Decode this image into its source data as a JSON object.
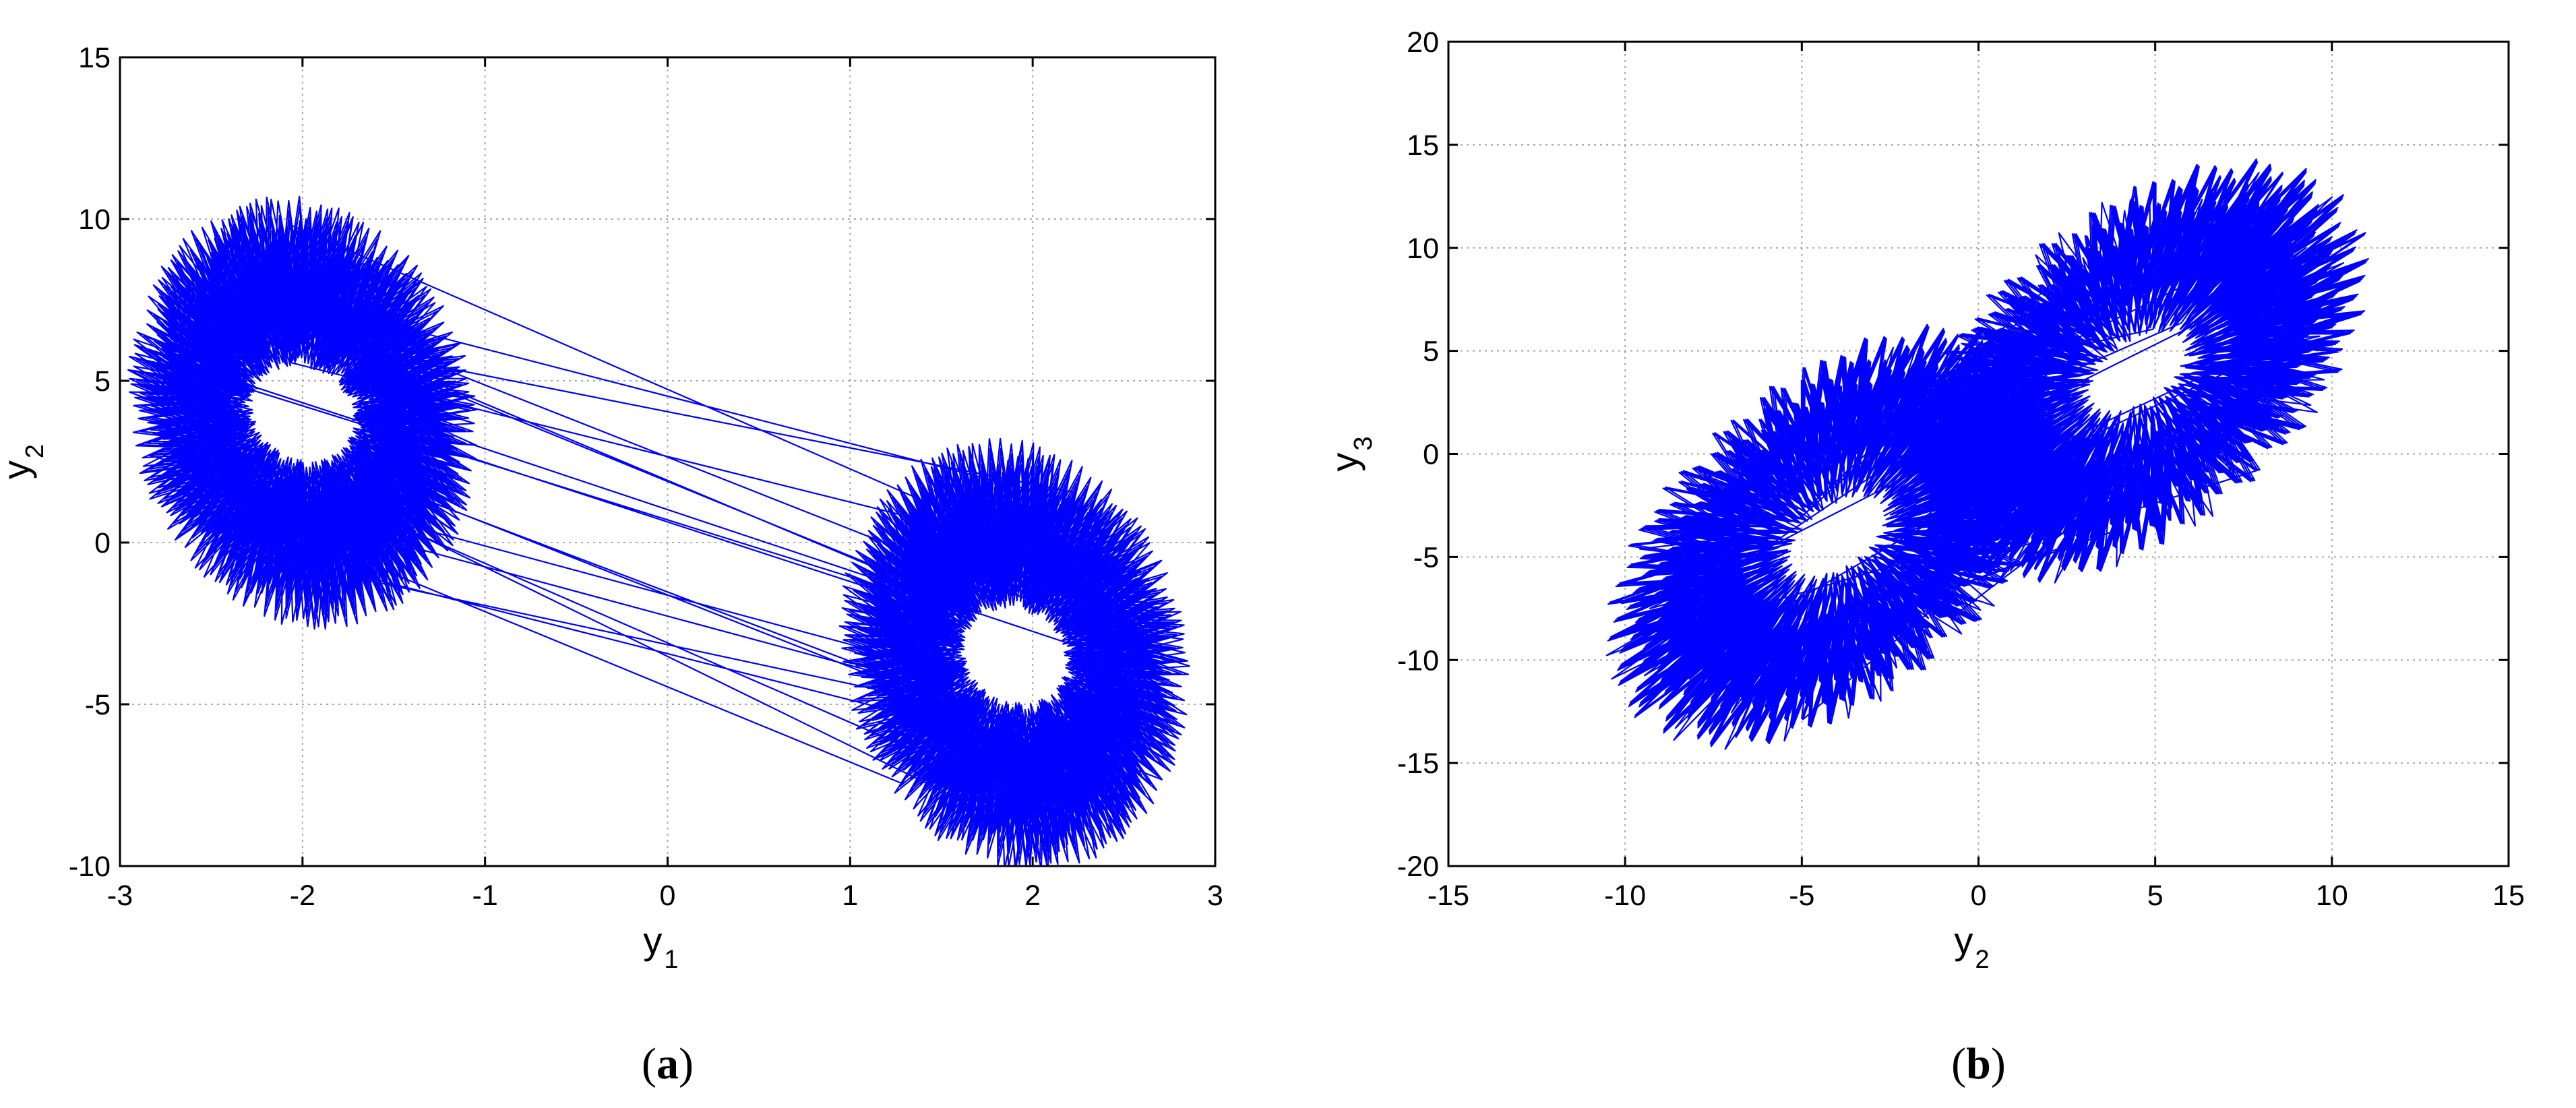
{
  "chart_data": [
    {
      "type": "line",
      "caption": {
        "open": "(",
        "letter": "a",
        "close": ")"
      },
      "xlabel": {
        "main": "y",
        "sub": "1"
      },
      "ylabel": {
        "main": "y",
        "sub": "2"
      },
      "xlim": [
        -3,
        3
      ],
      "ylim": [
        -10,
        15
      ],
      "xticks": [
        -3,
        -2,
        -1,
        0,
        1,
        2,
        3
      ],
      "yticks": [
        -10,
        -5,
        0,
        5,
        10,
        15
      ],
      "xtick_labels": [
        "-3",
        "-2",
        "-1",
        "0",
        "1",
        "2",
        "3"
      ],
      "ytick_labels": [
        "-10",
        "-5",
        "0",
        "5",
        "10",
        "15"
      ],
      "grid": true,
      "line_color": "#0000ff",
      "description_series": {
        "x": [
          -2.7,
          -2.5,
          -2.0,
          -1.2,
          -0.5,
          0.5,
          1.2,
          2.0,
          2.5,
          2.7,
          2.5,
          2.0,
          1.2,
          0.5,
          -0.5,
          -1.2,
          -2.0,
          -2.5
        ],
        "y": [
          5.5,
          9.0,
          11.2,
          8.5,
          5.0,
          4.5,
          2.5,
          0.5,
          -3.0,
          -6.5,
          -9.0,
          -10.0,
          -8.0,
          -5.0,
          -4.8,
          -2.5,
          -0.5,
          2.5
        ]
      },
      "attractor_centers": [
        [
          -2.0,
          4.0
        ],
        [
          1.9,
          -3.5
        ]
      ]
    },
    {
      "type": "line",
      "caption": {
        "open": "(",
        "letter": "b",
        "close": ")"
      },
      "xlabel": {
        "main": "y",
        "sub": "2"
      },
      "ylabel": {
        "main": "y",
        "sub": "3"
      },
      "xlim": [
        -15,
        15
      ],
      "ylim": [
        -20,
        20
      ],
      "xticks": [
        -15,
        -10,
        -5,
        0,
        5,
        10,
        15
      ],
      "yticks": [
        -20,
        -15,
        -10,
        -5,
        0,
        5,
        10,
        15,
        20
      ],
      "xtick_labels": [
        "-15",
        "-10",
        "-5",
        "0",
        "5",
        "10",
        "15"
      ],
      "ytick_labels": [
        "-20",
        "-15",
        "-10",
        "-5",
        "0",
        "5",
        "10",
        "15",
        "20"
      ],
      "grid": true,
      "line_color": "#0000ff",
      "description_series": {
        "x": [
          -9.5,
          -8.0,
          -4.0,
          2.0,
          6.0,
          9.0,
          11.0,
          10.0,
          6.0,
          2.0,
          -2.0,
          -7.0
        ],
        "y": [
          -12.0,
          -16.0,
          -12.0,
          -6.0,
          -8.0,
          -5.0,
          4.0,
          16.0,
          14.0,
          6.0,
          7.0,
          2.0
        ]
      },
      "attractor_centers": [
        [
          -4.0,
          -4.0
        ],
        [
          4.5,
          4.0
        ]
      ]
    }
  ]
}
